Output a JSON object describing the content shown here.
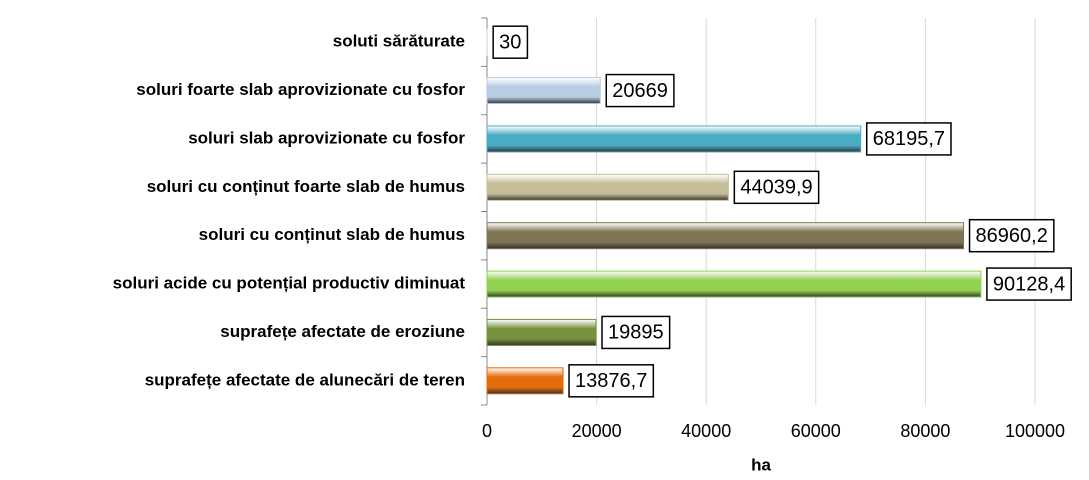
{
  "chart_data": {
    "type": "barh",
    "categories": [
      "soluti sărăturate",
      "soluri foarte slab aprovizionate cu fosfor",
      "soluri slab aprovizionate cu fosfor",
      "soluri cu conținut foarte slab de humus",
      "soluri cu conținut slab de humus",
      "soluri acide cu potențial productiv diminuat",
      "suprafețe afectate de eroziune",
      "suprafețe afectate de alunecări de teren"
    ],
    "values": [
      30,
      20669,
      68195.7,
      44039.9,
      86960.2,
      90128.4,
      19895,
      13876.7
    ],
    "value_labels": [
      "30",
      "20669",
      "68195,7",
      "44039,9",
      "86960,2",
      "90128,4",
      "19895",
      "13876,7"
    ],
    "colors": [
      "#d9d9d9",
      "#b8cce4",
      "#4bacc6",
      "#c4bd97",
      "#7f7453",
      "#92d050",
      "#76923c",
      "#e46c0a"
    ],
    "xlabel": "ha",
    "xlim": [
      0,
      100000
    ],
    "xticks": [
      0,
      20000,
      40000,
      60000,
      80000,
      100000
    ],
    "grid": true
  }
}
